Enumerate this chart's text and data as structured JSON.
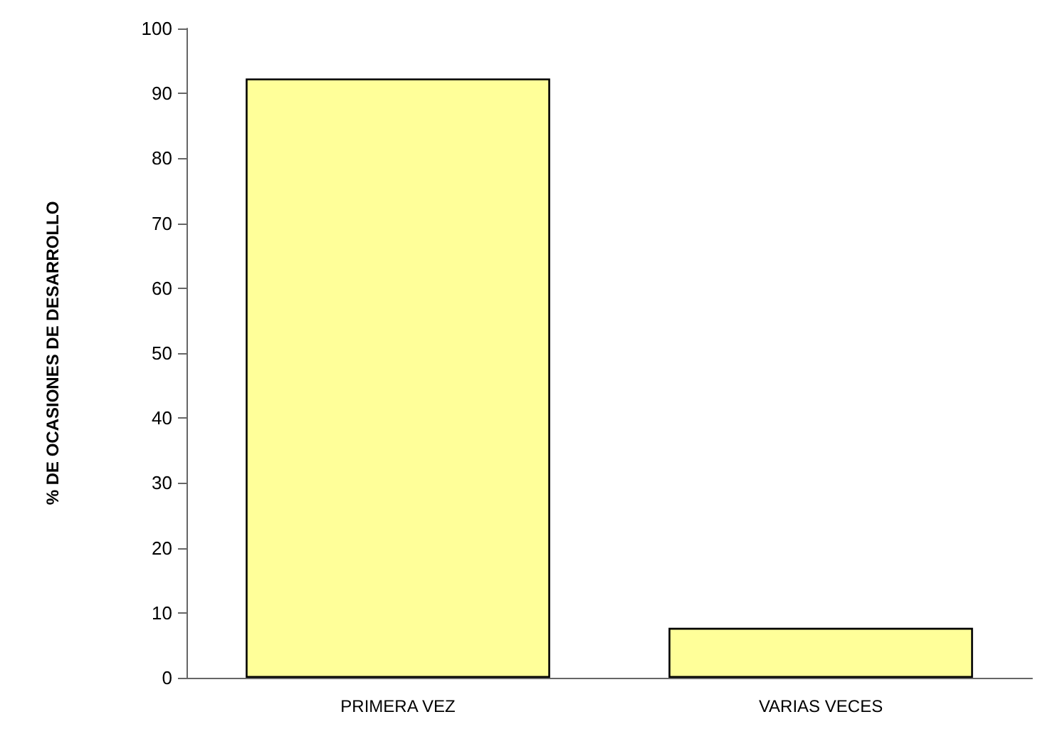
{
  "chart_data": {
    "type": "bar",
    "ylabel": "% DE OCASIONES DE DESARROLLO",
    "categories": [
      "PRIMERA VEZ",
      "VARIAS VECES"
    ],
    "values": [
      92.3,
      7.7
    ],
    "color": "#ffff99",
    "ylim": [
      0,
      100
    ],
    "yticks": [
      0,
      10,
      20,
      30,
      40,
      50,
      60,
      70,
      80,
      90,
      100
    ],
    "grid": false
  }
}
